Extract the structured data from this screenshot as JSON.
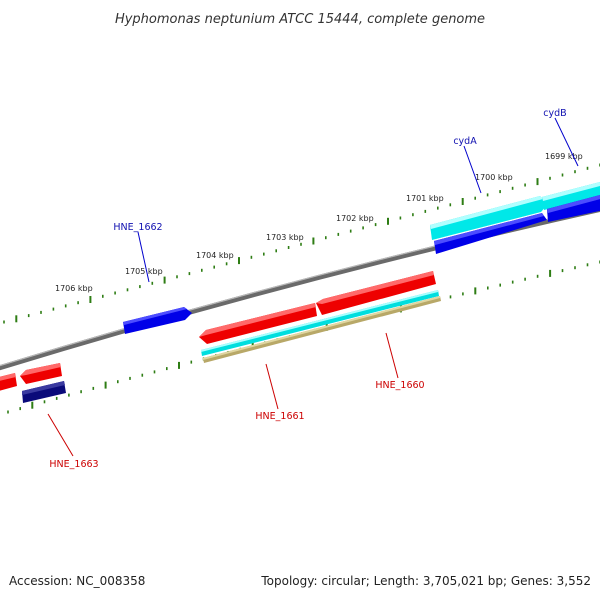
{
  "title": "Hyphomonas neptunium ATCC 15444, complete genome",
  "kbp_labels": [
    "1706 kbp",
    "1705 kbp",
    "1704 kbp",
    "1703 kbp",
    "1702 kbp",
    "1701 kbp",
    "1700 kbp",
    "1699 kbp"
  ],
  "gene_labels": {
    "HNE_1662": "HNE_1662",
    "cydA": "cydA",
    "cydB": "cydB",
    "HNE_1663": "HNE_1663",
    "HNE_1661": "HNE_1661",
    "HNE_1660": "HNE_1660"
  },
  "footer": {
    "accession": "Accession: NC_008358",
    "summary": "Topology: circular; Length: 3,705,021 bp; Genes: 3,552"
  },
  "colors": {
    "backbone": "#808080",
    "tick": "#2e7d14",
    "cds_forward": "#ff0000",
    "cds_reverse": "#0000ee",
    "cds_reverse_dark": "#0a0a7a",
    "gene_cyan": "#00f0f0",
    "gene_tan": "#c8b878",
    "label_blue": "#1010b0",
    "label_red": "#cc0000"
  }
}
